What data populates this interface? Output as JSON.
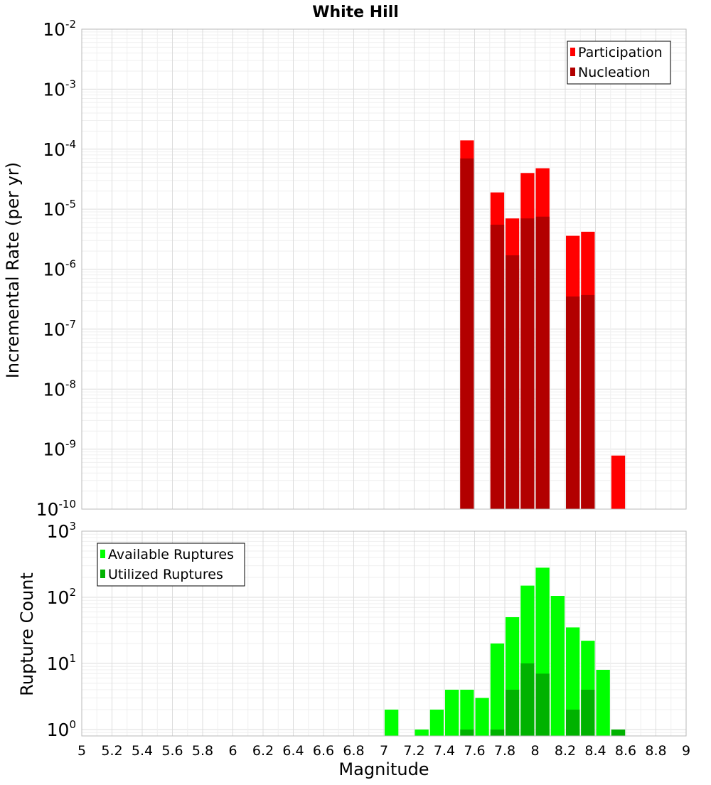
{
  "chart_data": [
    {
      "type": "bar",
      "title": "White Hill",
      "ylabel": "Incremental Rate (per yr)",
      "xlabel": "",
      "ylim": [
        1e-10,
        0.01
      ],
      "xlim": [
        5,
        9
      ],
      "log_y": true,
      "grid": true,
      "legend_position": "top-right",
      "bin_width": 0.1,
      "y_ticks": [
        {
          "base": "10",
          "exp": "-2",
          "value": 0.01
        },
        {
          "base": "10",
          "exp": "-3",
          "value": 0.001
        },
        {
          "base": "10",
          "exp": "-4",
          "value": 0.0001
        },
        {
          "base": "10",
          "exp": "-5",
          "value": 1e-05
        },
        {
          "base": "10",
          "exp": "-6",
          "value": 1e-06
        },
        {
          "base": "10",
          "exp": "-7",
          "value": 1e-07
        },
        {
          "base": "10",
          "exp": "-8",
          "value": 1e-08
        },
        {
          "base": "10",
          "exp": "-9",
          "value": 1e-09
        },
        {
          "base": "10",
          "exp": "-10",
          "value": 1e-10
        }
      ],
      "series": [
        {
          "name": "Participation",
          "color": "#ff0000",
          "points": [
            {
              "x": 7.55,
              "y": 0.00014
            },
            {
              "x": 7.75,
              "y": 1.9e-05
            },
            {
              "x": 7.85,
              "y": 7e-06
            },
            {
              "x": 7.95,
              "y": 4e-05
            },
            {
              "x": 8.05,
              "y": 4.8e-05
            },
            {
              "x": 8.25,
              "y": 3.6e-06
            },
            {
              "x": 8.35,
              "y": 4.2e-06
            },
            {
              "x": 8.55,
              "y": 7.8e-10
            }
          ]
        },
        {
          "name": "Nucleation",
          "color": "#b20000",
          "points": [
            {
              "x": 7.55,
              "y": 7e-05
            },
            {
              "x": 7.75,
              "y": 5.5e-06
            },
            {
              "x": 7.85,
              "y": 1.7e-06
            },
            {
              "x": 7.95,
              "y": 7e-06
            },
            {
              "x": 8.05,
              "y": 7.5e-06
            },
            {
              "x": 8.25,
              "y": 3.5e-07
            },
            {
              "x": 8.35,
              "y": 3.7e-07
            }
          ]
        }
      ]
    },
    {
      "type": "bar",
      "title": "",
      "ylabel": "Rupture Count",
      "xlabel": "Magnitude",
      "ylim": [
        0.8,
        1000
      ],
      "xlim": [
        5,
        9
      ],
      "log_y": true,
      "grid": true,
      "legend_position": "top-left",
      "bin_width": 0.1,
      "x_ticks": [
        "5",
        "5.2",
        "5.4",
        "5.6",
        "5.8",
        "6",
        "6.2",
        "6.4",
        "6.6",
        "6.8",
        "7",
        "7.2",
        "7.4",
        "7.6",
        "7.8",
        "8",
        "8.2",
        "8.4",
        "8.6",
        "8.8",
        "9"
      ],
      "y_ticks": [
        {
          "base": "10",
          "exp": "3",
          "value": 1000
        },
        {
          "base": "10",
          "exp": "2",
          "value": 100
        },
        {
          "base": "10",
          "exp": "1",
          "value": 10
        },
        {
          "base": "10",
          "exp": "0",
          "value": 1
        }
      ],
      "series": [
        {
          "name": "Available Ruptures",
          "color": "#00ff00",
          "points": [
            {
              "x": 7.05,
              "y": 2
            },
            {
              "x": 7.25,
              "y": 1
            },
            {
              "x": 7.35,
              "y": 2
            },
            {
              "x": 7.45,
              "y": 4
            },
            {
              "x": 7.55,
              "y": 4
            },
            {
              "x": 7.65,
              "y": 3
            },
            {
              "x": 7.75,
              "y": 20
            },
            {
              "x": 7.85,
              "y": 50
            },
            {
              "x": 7.95,
              "y": 150
            },
            {
              "x": 8.05,
              "y": 280
            },
            {
              "x": 8.15,
              "y": 105
            },
            {
              "x": 8.25,
              "y": 35
            },
            {
              "x": 8.35,
              "y": 22
            },
            {
              "x": 8.45,
              "y": 8
            },
            {
              "x": 8.55,
              "y": 1
            }
          ]
        },
        {
          "name": "Utilized Ruptures",
          "color": "#00b200",
          "points": [
            {
              "x": 7.55,
              "y": 1
            },
            {
              "x": 7.75,
              "y": 1
            },
            {
              "x": 7.85,
              "y": 4
            },
            {
              "x": 7.95,
              "y": 10
            },
            {
              "x": 8.05,
              "y": 7
            },
            {
              "x": 8.25,
              "y": 2
            },
            {
              "x": 8.35,
              "y": 4
            },
            {
              "x": 8.55,
              "y": 1
            }
          ]
        }
      ]
    }
  ]
}
